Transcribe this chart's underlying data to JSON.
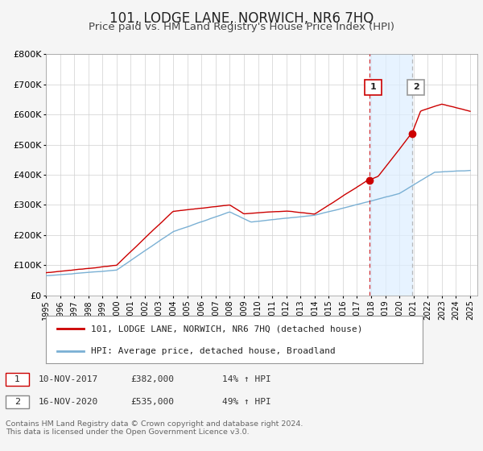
{
  "title": "101, LODGE LANE, NORWICH, NR6 7HQ",
  "subtitle": "Price paid vs. HM Land Registry's House Price Index (HPI)",
  "ylim": [
    0,
    800000
  ],
  "yticks": [
    0,
    100000,
    200000,
    300000,
    400000,
    500000,
    600000,
    700000,
    800000
  ],
  "ytick_labels": [
    "£0",
    "£100K",
    "£200K",
    "£300K",
    "£400K",
    "£500K",
    "£600K",
    "£700K",
    "£800K"
  ],
  "xlim_start": 1995.0,
  "xlim_end": 2025.5,
  "background_color": "#f5f5f5",
  "plot_bg_color": "#ffffff",
  "grid_color": "#d0d0d0",
  "title_fontsize": 12,
  "subtitle_fontsize": 9.5,
  "label1_date": "10-NOV-2017",
  "label1_price": "£382,000",
  "label1_hpi": "14% ↑ HPI",
  "label2_date": "16-NOV-2020",
  "label2_price": "£535,000",
  "label2_hpi": "49% ↑ HPI",
  "sale1_year": 2017.86,
  "sale1_price": 382000,
  "sale2_year": 2020.88,
  "sale2_price": 535000,
  "vline1_year": 2017.86,
  "vline2_year": 2020.88,
  "red_line_color": "#cc0000",
  "blue_line_color": "#7ab0d4",
  "footer_text": "Contains HM Land Registry data © Crown copyright and database right 2024.\nThis data is licensed under the Open Government Licence v3.0.",
  "legend_label1": "101, LODGE LANE, NORWICH, NR6 7HQ (detached house)",
  "legend_label2": "HPI: Average price, detached house, Broadland"
}
